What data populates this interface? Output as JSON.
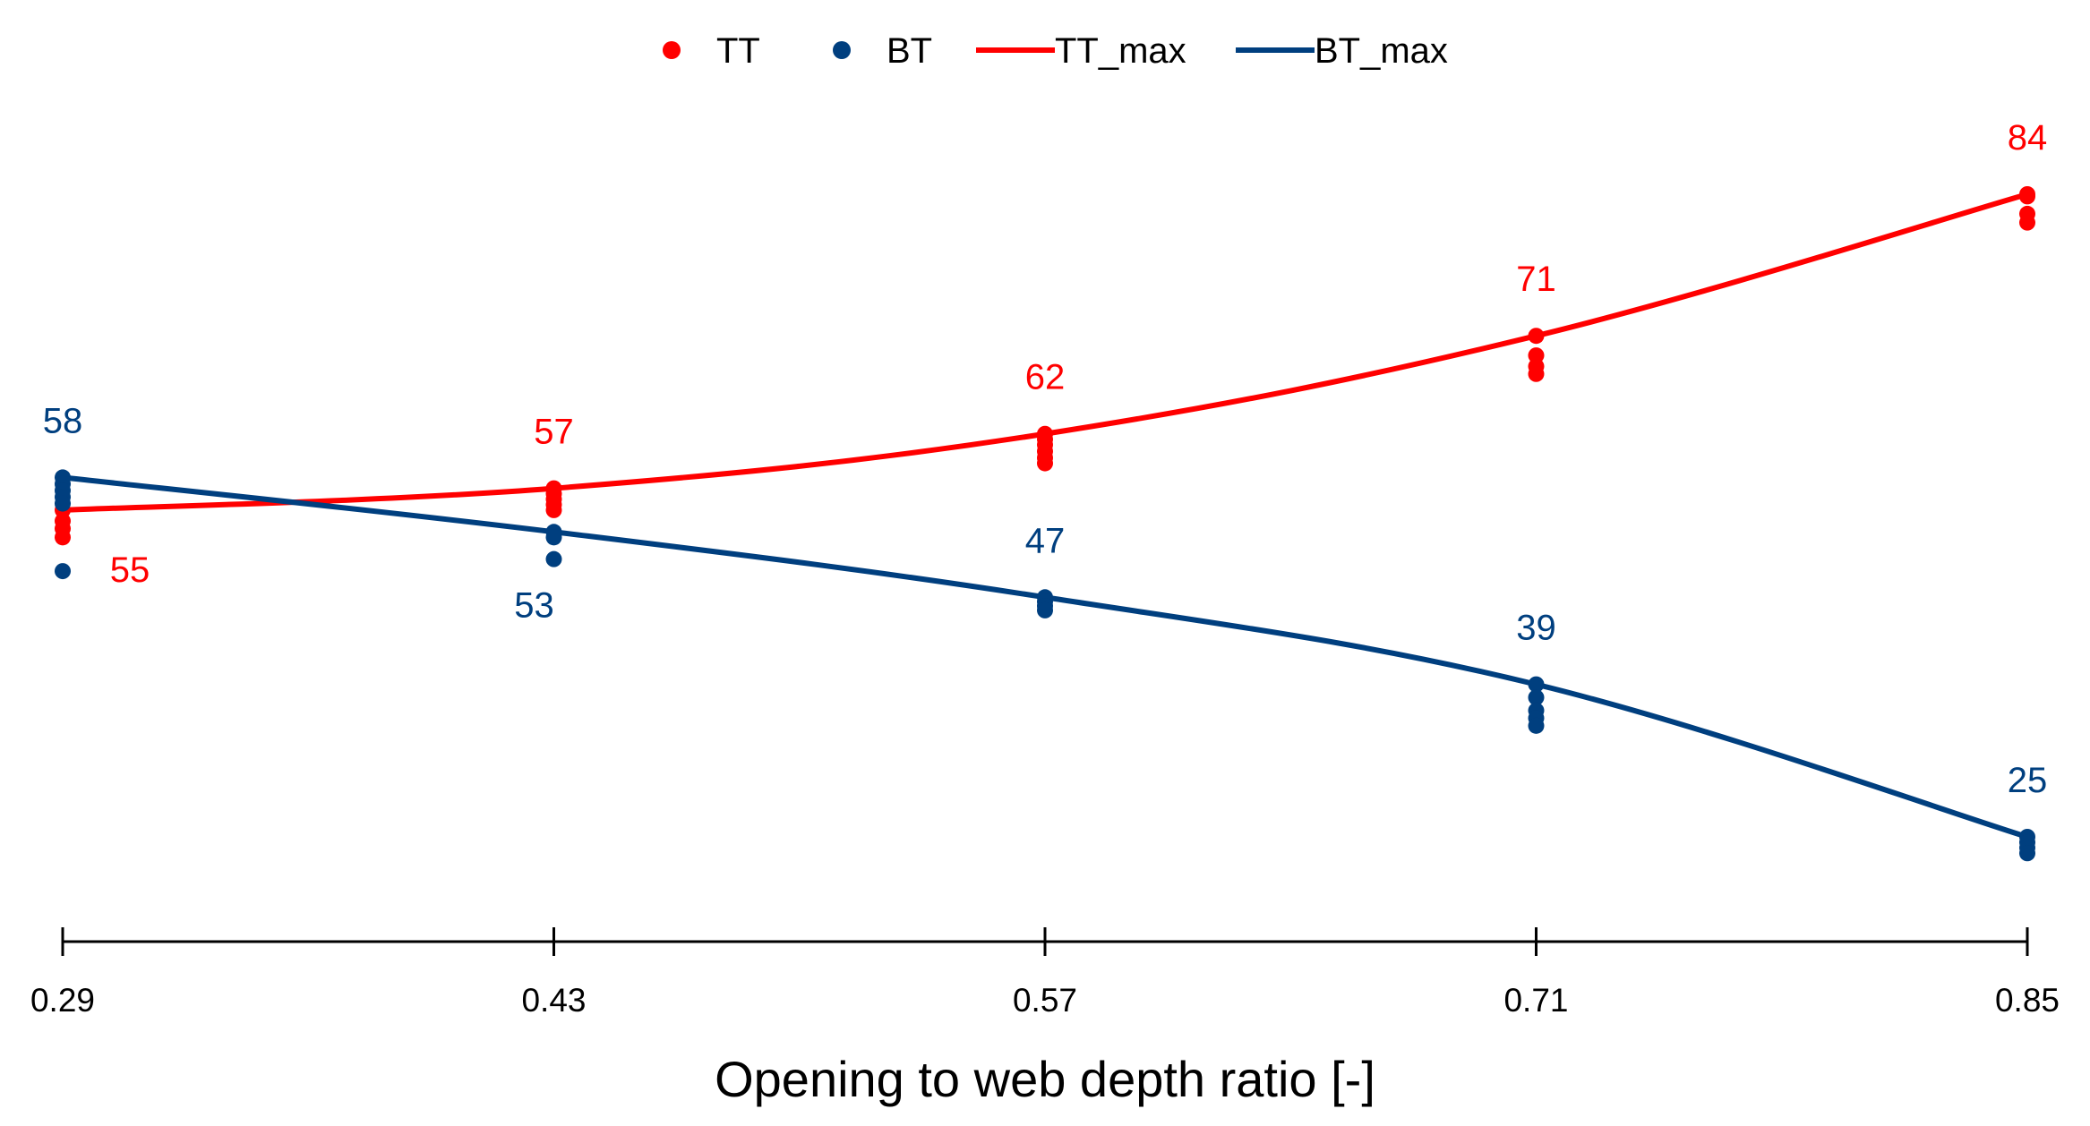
{
  "chart_data": {
    "type": "scatter",
    "title": "",
    "xlabel": "Opening to web depth ratio [-]",
    "ylabel": "",
    "x": [
      0.29,
      0.43,
      0.57,
      0.71,
      0.85
    ],
    "xtick_labels": [
      "0.29",
      "0.43",
      "0.57",
      "0.71",
      "0.85"
    ],
    "ylim": [
      15,
      90
    ],
    "grid": false,
    "legend_position": "top-center",
    "colors": {
      "TT": "#ff0000",
      "BT": "#003f7f"
    },
    "series": [
      {
        "name": "TT",
        "kind": "points",
        "color": "#ff0000",
        "points": [
          [
            0.29,
            55.0
          ],
          [
            0.29,
            54.0
          ],
          [
            0.29,
            53.3
          ],
          [
            0.29,
            52.5
          ],
          [
            0.43,
            57.0
          ],
          [
            0.43,
            56.5
          ],
          [
            0.43,
            56.0
          ],
          [
            0.43,
            55.5
          ],
          [
            0.43,
            55.0
          ],
          [
            0.57,
            62.0
          ],
          [
            0.57,
            61.5
          ],
          [
            0.57,
            61.0
          ],
          [
            0.57,
            60.4
          ],
          [
            0.57,
            59.8
          ],
          [
            0.57,
            59.3
          ],
          [
            0.71,
            71.0
          ],
          [
            0.71,
            69.2
          ],
          [
            0.71,
            68.2
          ],
          [
            0.71,
            67.5
          ],
          [
            0.85,
            84.0
          ],
          [
            0.85,
            83.8
          ],
          [
            0.85,
            82.2
          ],
          [
            0.85,
            81.4
          ]
        ]
      },
      {
        "name": "BT",
        "kind": "points",
        "color": "#003f7f",
        "points": [
          [
            0.29,
            58.0
          ],
          [
            0.29,
            57.4
          ],
          [
            0.29,
            56.8
          ],
          [
            0.29,
            56.2
          ],
          [
            0.29,
            55.6
          ],
          [
            0.29,
            49.4
          ],
          [
            0.43,
            53.0
          ],
          [
            0.43,
            52.5
          ],
          [
            0.43,
            50.5
          ],
          [
            0.57,
            47.0
          ],
          [
            0.57,
            46.6
          ],
          [
            0.57,
            46.2
          ],
          [
            0.57,
            45.8
          ],
          [
            0.71,
            39.0
          ],
          [
            0.71,
            37.8
          ],
          [
            0.71,
            36.6
          ],
          [
            0.71,
            35.9
          ],
          [
            0.71,
            35.2
          ],
          [
            0.85,
            25.0
          ],
          [
            0.85,
            24.5
          ],
          [
            0.85,
            24.0
          ],
          [
            0.85,
            23.5
          ]
        ]
      },
      {
        "name": "TT_max",
        "kind": "line",
        "color": "#ff0000",
        "points": [
          [
            0.29,
            55
          ],
          [
            0.43,
            57
          ],
          [
            0.57,
            62
          ],
          [
            0.71,
            71
          ],
          [
            0.85,
            84
          ]
        ]
      },
      {
        "name": "BT_max",
        "kind": "line",
        "color": "#003f7f",
        "points": [
          [
            0.29,
            58
          ],
          [
            0.43,
            53
          ],
          [
            0.57,
            47
          ],
          [
            0.71,
            39
          ],
          [
            0.85,
            25
          ]
        ]
      }
    ],
    "data_labels": [
      {
        "series": "BT",
        "x": 0.29,
        "y": 58,
        "text": "58",
        "position": "above"
      },
      {
        "series": "TT",
        "x": 0.29,
        "y": 55,
        "text": "55",
        "position": "below-right"
      },
      {
        "series": "TT",
        "x": 0.43,
        "y": 57,
        "text": "57",
        "position": "above"
      },
      {
        "series": "BT",
        "x": 0.43,
        "y": 53,
        "text": "53",
        "position": "below"
      },
      {
        "series": "TT",
        "x": 0.57,
        "y": 62,
        "text": "62",
        "position": "above"
      },
      {
        "series": "BT",
        "x": 0.57,
        "y": 47,
        "text": "47",
        "position": "above"
      },
      {
        "series": "TT",
        "x": 0.71,
        "y": 71,
        "text": "71",
        "position": "above"
      },
      {
        "series": "BT",
        "x": 0.71,
        "y": 39,
        "text": "39",
        "position": "above"
      },
      {
        "series": "TT",
        "x": 0.85,
        "y": 84,
        "text": "84",
        "position": "above"
      },
      {
        "series": "BT",
        "x": 0.85,
        "y": 25,
        "text": "25",
        "position": "above"
      }
    ],
    "legend": [
      {
        "name": "TT",
        "marker": "dot",
        "color": "#ff0000"
      },
      {
        "name": "BT",
        "marker": "dot",
        "color": "#003f7f"
      },
      {
        "name": "TT_max",
        "marker": "line",
        "color": "#ff0000"
      },
      {
        "name": "BT_max",
        "marker": "line",
        "color": "#003f7f"
      }
    ]
  }
}
